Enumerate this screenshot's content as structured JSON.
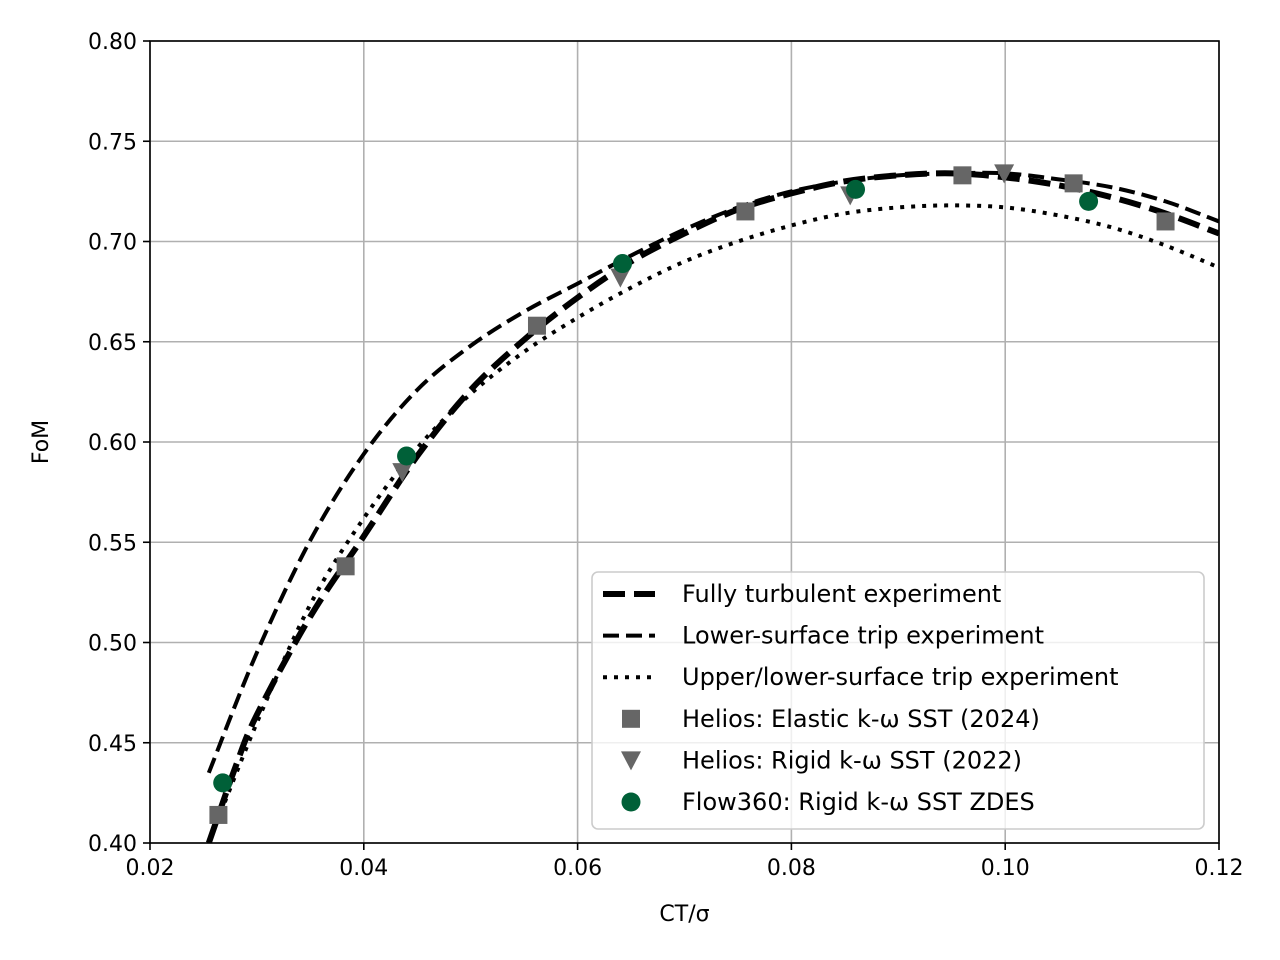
{
  "chart_data": {
    "type": "line",
    "title": "",
    "xlabel": "CT/σ",
    "ylabel": "FoM",
    "xlim": [
      0.02,
      0.12
    ],
    "ylim": [
      0.4,
      0.8
    ],
    "xticks": [
      0.02,
      0.04,
      0.06,
      0.08,
      0.1,
      0.12
    ],
    "xtick_labels": [
      "0.02",
      "0.04",
      "0.06",
      "0.08",
      "0.10",
      "0.12"
    ],
    "yticks": [
      0.4,
      0.45,
      0.5,
      0.55,
      0.6,
      0.65,
      0.7,
      0.75,
      0.8
    ],
    "ytick_labels": [
      "0.40",
      "0.45",
      "0.50",
      "0.55",
      "0.60",
      "0.65",
      "0.70",
      "0.75",
      "0.80"
    ],
    "grid": true,
    "legend_position": "bottom-right",
    "series": [
      {
        "name": "Fully turbulent experiment",
        "kind": "line",
        "style": "thick-dashed",
        "color": "#000000",
        "x": [
          0.0255,
          0.028,
          0.03,
          0.035,
          0.04,
          0.045,
          0.05,
          0.055,
          0.06,
          0.065,
          0.07,
          0.075,
          0.08,
          0.085,
          0.09,
          0.095,
          0.1,
          0.105,
          0.11,
          0.115,
          0.12
        ],
        "y": [
          0.4,
          0.438,
          0.464,
          0.513,
          0.553,
          0.593,
          0.626,
          0.651,
          0.672,
          0.69,
          0.704,
          0.716,
          0.724,
          0.73,
          0.733,
          0.734,
          0.732,
          0.728,
          0.722,
          0.714,
          0.704
        ]
      },
      {
        "name": "Lower-surface trip experiment",
        "kind": "line",
        "style": "dashed",
        "color": "#000000",
        "x": [
          0.0255,
          0.03,
          0.035,
          0.04,
          0.045,
          0.05,
          0.055,
          0.06,
          0.065,
          0.07,
          0.075,
          0.08,
          0.085,
          0.09,
          0.095,
          0.1,
          0.105,
          0.11,
          0.115,
          0.12
        ],
        "y": [
          0.435,
          0.495,
          0.551,
          0.594,
          0.626,
          0.648,
          0.665,
          0.679,
          0.693,
          0.706,
          0.717,
          0.725,
          0.73,
          0.733,
          0.734,
          0.734,
          0.731,
          0.727,
          0.72,
          0.71
        ]
      },
      {
        "name": "Upper/lower-surface trip experiment",
        "kind": "line",
        "style": "dotted",
        "color": "#000000",
        "x": [
          0.0255,
          0.03,
          0.035,
          0.04,
          0.045,
          0.05,
          0.055,
          0.06,
          0.065,
          0.07,
          0.075,
          0.08,
          0.085,
          0.09,
          0.095,
          0.1,
          0.105,
          0.11,
          0.115,
          0.12
        ],
        "y": [
          0.4,
          0.46,
          0.519,
          0.562,
          0.597,
          0.624,
          0.645,
          0.662,
          0.677,
          0.69,
          0.7,
          0.708,
          0.714,
          0.717,
          0.718,
          0.717,
          0.713,
          0.707,
          0.698,
          0.687
        ]
      },
      {
        "name": "Helios: Elastic k-ω SST (2024)",
        "kind": "scatter",
        "marker": "square",
        "color": "#666666",
        "x": [
          0.0264,
          0.0383,
          0.0562,
          0.0757,
          0.096,
          0.1064,
          0.115
        ],
        "y": [
          0.414,
          0.538,
          0.658,
          0.715,
          0.733,
          0.729,
          0.71
        ]
      },
      {
        "name": "Helios: Rigid k-ω SST (2022)",
        "kind": "scatter",
        "marker": "triangle-down",
        "color": "#666666",
        "x": [
          0.0436,
          0.064,
          0.0855,
          0.0999
        ],
        "y": [
          0.585,
          0.682,
          0.723,
          0.734
        ]
      },
      {
        "name": "Flow360: Rigid k-ω SST ZDES",
        "kind": "scatter",
        "marker": "circle",
        "color": "#006038",
        "x": [
          0.0268,
          0.044,
          0.0642,
          0.086,
          0.1078
        ],
        "y": [
          0.43,
          0.593,
          0.689,
          0.726,
          0.72
        ]
      }
    ]
  }
}
